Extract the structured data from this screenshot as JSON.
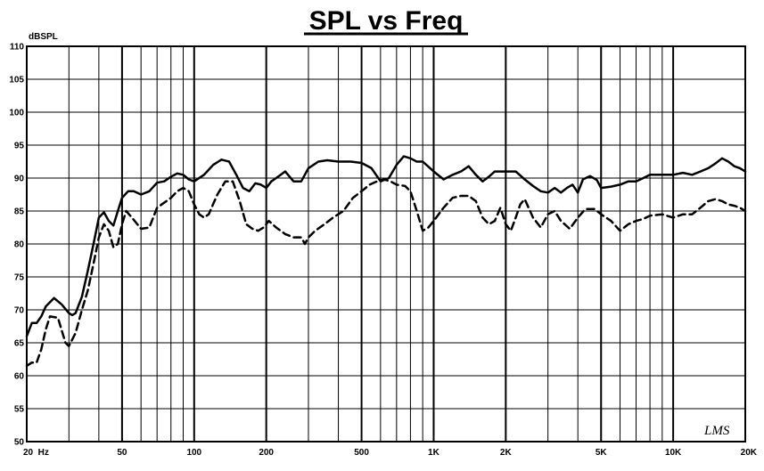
{
  "chart_data": {
    "type": "line",
    "title": "SPL vs Freq",
    "y_unit_label": "dBSPL",
    "x_scale": "log",
    "xlim": [
      20,
      20000
    ],
    "ylim": [
      50,
      110
    ],
    "grid": true,
    "x_tick_labels": [
      {
        "x": 20,
        "label": "20  Hz"
      },
      {
        "x": 50,
        "label": "50"
      },
      {
        "x": 100,
        "label": "100"
      },
      {
        "x": 200,
        "label": "200"
      },
      {
        "x": 500,
        "label": "500"
      },
      {
        "x": 1000,
        "label": "1K"
      },
      {
        "x": 2000,
        "label": "2K"
      },
      {
        "x": 5000,
        "label": "5K"
      },
      {
        "x": 10000,
        "label": "10K"
      },
      {
        "x": 20000,
        "label": "20K"
      }
    ],
    "y_ticks": [
      50,
      55,
      60,
      65,
      70,
      75,
      80,
      85,
      90,
      95,
      100,
      105,
      110
    ],
    "signature": "LMS",
    "series": [
      {
        "style": "solid",
        "color": "#000000",
        "points": [
          [
            20,
            66
          ],
          [
            21,
            68
          ],
          [
            22,
            68
          ],
          [
            23,
            69
          ],
          [
            24,
            70.5
          ],
          [
            26,
            71.8
          ],
          [
            28,
            70.8
          ],
          [
            30,
            69.5
          ],
          [
            31,
            69.2
          ],
          [
            32,
            69.5
          ],
          [
            34,
            72
          ],
          [
            36,
            76
          ],
          [
            38,
            80
          ],
          [
            40,
            84
          ],
          [
            42,
            84.8
          ],
          [
            44,
            83.5
          ],
          [
            46,
            82.8
          ],
          [
            48,
            85
          ],
          [
            50,
            87
          ],
          [
            53,
            88
          ],
          [
            56,
            88
          ],
          [
            60,
            87.5
          ],
          [
            65,
            88
          ],
          [
            70,
            89.3
          ],
          [
            75,
            89.5
          ],
          [
            80,
            90.2
          ],
          [
            85,
            90.7
          ],
          [
            90,
            90.5
          ],
          [
            95,
            89.8
          ],
          [
            100,
            89.5
          ],
          [
            110,
            90.5
          ],
          [
            120,
            92
          ],
          [
            130,
            92.8
          ],
          [
            140,
            92.5
          ],
          [
            150,
            90.5
          ],
          [
            160,
            88.5
          ],
          [
            170,
            88
          ],
          [
            180,
            89.2
          ],
          [
            190,
            89
          ],
          [
            200,
            88.5
          ],
          [
            210,
            89.5
          ],
          [
            220,
            90
          ],
          [
            240,
            91
          ],
          [
            260,
            89.5
          ],
          [
            280,
            89.5
          ],
          [
            300,
            91.5
          ],
          [
            330,
            92.5
          ],
          [
            360,
            92.7
          ],
          [
            400,
            92.5
          ],
          [
            450,
            92.5
          ],
          [
            500,
            92.3
          ],
          [
            550,
            91.5
          ],
          [
            600,
            89.5
          ],
          [
            650,
            90
          ],
          [
            700,
            92
          ],
          [
            750,
            93.3
          ],
          [
            800,
            93
          ],
          [
            850,
            92.5
          ],
          [
            900,
            92.5
          ],
          [
            1000,
            91
          ],
          [
            1100,
            89.8
          ],
          [
            1200,
            90.5
          ],
          [
            1300,
            91
          ],
          [
            1400,
            91.8
          ],
          [
            1500,
            90.5
          ],
          [
            1600,
            89.5
          ],
          [
            1700,
            90.2
          ],
          [
            1800,
            91
          ],
          [
            2000,
            91
          ],
          [
            2200,
            91
          ],
          [
            2400,
            89.8
          ],
          [
            2600,
            88.8
          ],
          [
            2800,
            88
          ],
          [
            3000,
            87.8
          ],
          [
            3200,
            88.5
          ],
          [
            3400,
            87.8
          ],
          [
            3600,
            88.5
          ],
          [
            3800,
            89
          ],
          [
            4000,
            87.8
          ],
          [
            4200,
            89.8
          ],
          [
            4500,
            90.3
          ],
          [
            4800,
            89.7
          ],
          [
            5000,
            88.5
          ],
          [
            5500,
            88.7
          ],
          [
            6000,
            89
          ],
          [
            6500,
            89.5
          ],
          [
            7000,
            89.5
          ],
          [
            7500,
            90
          ],
          [
            8000,
            90.5
          ],
          [
            9000,
            90.5
          ],
          [
            10000,
            90.5
          ],
          [
            11000,
            90.8
          ],
          [
            12000,
            90.5
          ],
          [
            13000,
            91
          ],
          [
            14000,
            91.5
          ],
          [
            15000,
            92.2
          ],
          [
            16000,
            93
          ],
          [
            17000,
            92.5
          ],
          [
            18000,
            91.8
          ],
          [
            19000,
            91.5
          ],
          [
            20000,
            91
          ]
        ]
      },
      {
        "style": "dashed",
        "color": "#000000",
        "points": [
          [
            20,
            61.5
          ],
          [
            21,
            62
          ],
          [
            22,
            62
          ],
          [
            23,
            64
          ],
          [
            24,
            67
          ],
          [
            25,
            69
          ],
          [
            27,
            68.8
          ],
          [
            29,
            65
          ],
          [
            30,
            64.5
          ],
          [
            32,
            66.5
          ],
          [
            34,
            70
          ],
          [
            36,
            73
          ],
          [
            38,
            77
          ],
          [
            40,
            81
          ],
          [
            42,
            83
          ],
          [
            44,
            82
          ],
          [
            46,
            79.5
          ],
          [
            48,
            80
          ],
          [
            50,
            83
          ],
          [
            52,
            85
          ],
          [
            55,
            84
          ],
          [
            60,
            82.3
          ],
          [
            65,
            82.5
          ],
          [
            70,
            85.5
          ],
          [
            80,
            87
          ],
          [
            85,
            88
          ],
          [
            90,
            88.5
          ],
          [
            95,
            88
          ],
          [
            100,
            86
          ],
          [
            105,
            84.5
          ],
          [
            110,
            84
          ],
          [
            115,
            84.5
          ],
          [
            125,
            87.5
          ],
          [
            135,
            89.5
          ],
          [
            145,
            89.5
          ],
          [
            155,
            86.5
          ],
          [
            165,
            83
          ],
          [
            175,
            82.3
          ],
          [
            185,
            82
          ],
          [
            195,
            82.5
          ],
          [
            205,
            83.5
          ],
          [
            220,
            82.5
          ],
          [
            240,
            81.5
          ],
          [
            260,
            81
          ],
          [
            280,
            81
          ],
          [
            290,
            80
          ],
          [
            300,
            81
          ],
          [
            320,
            82
          ],
          [
            350,
            83
          ],
          [
            380,
            84
          ],
          [
            420,
            85
          ],
          [
            460,
            87
          ],
          [
            500,
            88
          ],
          [
            540,
            89
          ],
          [
            580,
            89.5
          ],
          [
            620,
            89.8
          ],
          [
            660,
            89.5
          ],
          [
            700,
            89
          ],
          [
            760,
            88.8
          ],
          [
            800,
            88
          ],
          [
            850,
            85
          ],
          [
            900,
            82
          ],
          [
            950,
            82.5
          ],
          [
            1000,
            83.5
          ],
          [
            1100,
            85.5
          ],
          [
            1200,
            87
          ],
          [
            1300,
            87.3
          ],
          [
            1400,
            87.3
          ],
          [
            1500,
            86.5
          ],
          [
            1600,
            84
          ],
          [
            1700,
            83
          ],
          [
            1800,
            83.5
          ],
          [
            1900,
            85.5
          ],
          [
            2000,
            83
          ],
          [
            2100,
            82
          ],
          [
            2200,
            84
          ],
          [
            2300,
            86
          ],
          [
            2400,
            86.8
          ],
          [
            2600,
            84
          ],
          [
            2800,
            82.5
          ],
          [
            3000,
            84.5
          ],
          [
            3200,
            85
          ],
          [
            3400,
            83.5
          ],
          [
            3700,
            82.3
          ],
          [
            4000,
            84
          ],
          [
            4300,
            85.3
          ],
          [
            4700,
            85.3
          ],
          [
            5000,
            84.5
          ],
          [
            5500,
            83.5
          ],
          [
            6000,
            82
          ],
          [
            6500,
            83
          ],
          [
            7000,
            83.5
          ],
          [
            7500,
            83.8
          ],
          [
            8000,
            84.3
          ],
          [
            9000,
            84.5
          ],
          [
            10000,
            84
          ],
          [
            11000,
            84.5
          ],
          [
            12000,
            84.5
          ],
          [
            13000,
            85.5
          ],
          [
            14000,
            86.5
          ],
          [
            15000,
            86.8
          ],
          [
            16000,
            86.5
          ],
          [
            17000,
            86
          ],
          [
            18000,
            85.8
          ],
          [
            19000,
            85.5
          ],
          [
            20000,
            85
          ]
        ]
      }
    ]
  }
}
